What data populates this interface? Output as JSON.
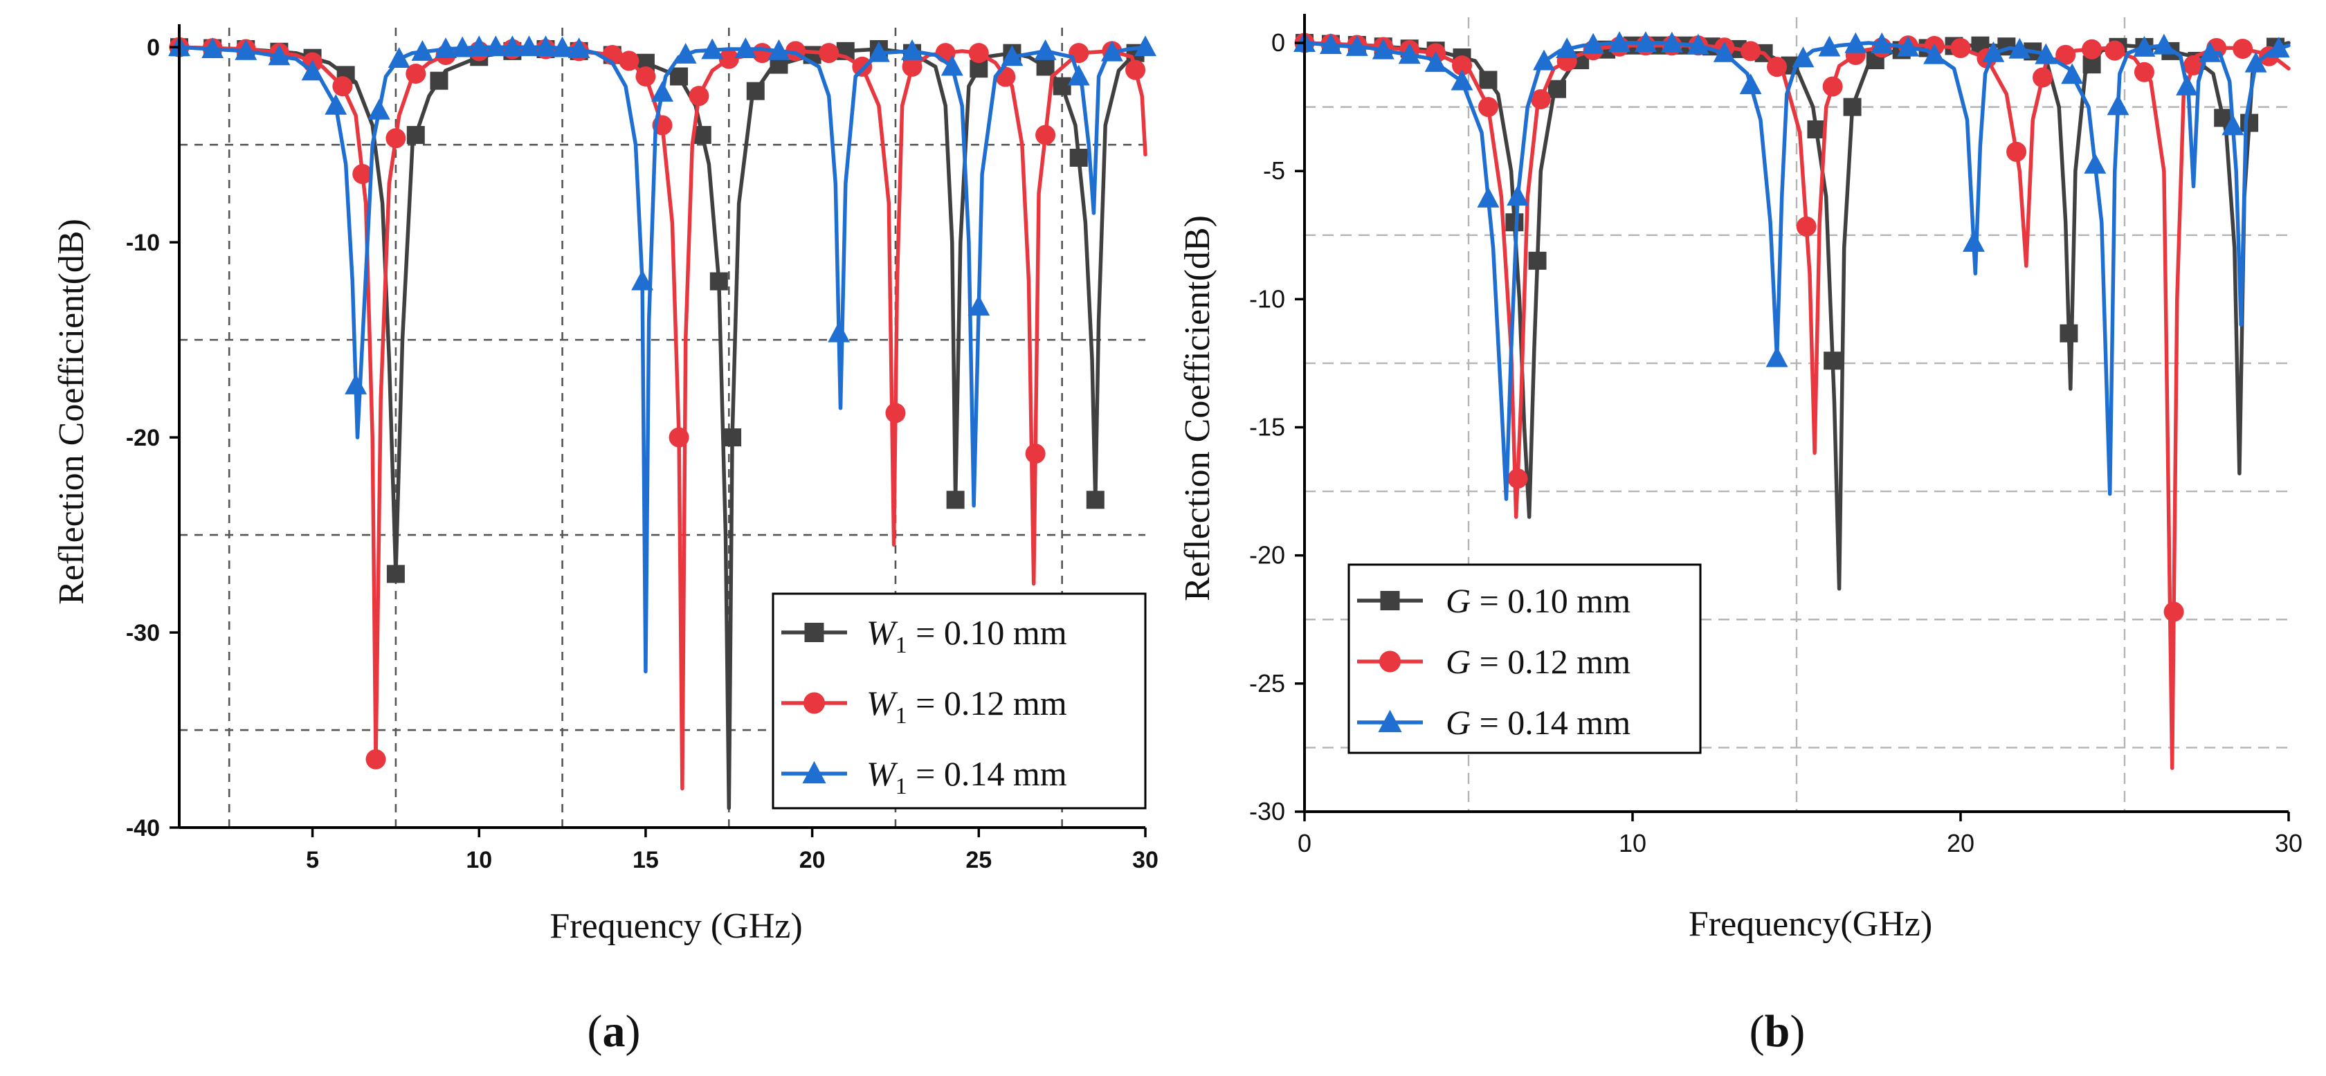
{
  "colors": {
    "black": "#404040",
    "red": "#e8373f",
    "blue": "#1e6fd1",
    "grid": "#555555",
    "grid_b": "#b4b4b4"
  },
  "panels": [
    {
      "id": "a",
      "label_prefix": "(",
      "label_letter": "a",
      "label_suffix": ")",
      "legend_text": [
        {
          "var": "W",
          "sub": "1",
          "rest": " = 0.10 mm"
        },
        {
          "var": "W",
          "sub": "1",
          "rest": " = 0.12 mm"
        },
        {
          "var": "W",
          "sub": "1",
          "rest": " = 0.14 mm"
        }
      ]
    },
    {
      "id": "b",
      "label_prefix": "(",
      "label_letter": "b",
      "label_suffix": ")",
      "legend_text": [
        {
          "var": "G",
          "sub": "",
          "rest": " = 0.10 mm"
        },
        {
          "var": "G",
          "sub": "",
          "rest": " = 0.12 mm"
        },
        {
          "var": "G",
          "sub": "",
          "rest": " = 0.14 mm"
        }
      ]
    }
  ],
  "chart_data": [
    {
      "type": "line",
      "title": "",
      "xlabel": "Frequency (GHz)",
      "ylabel": "Reflection Coefficient(dB)",
      "xlim": [
        1,
        30
      ],
      "ylim": [
        -40,
        1
      ],
      "xticks": [
        5,
        10,
        15,
        20,
        25,
        30
      ],
      "yticks": [
        -40,
        -30,
        -20,
        -10,
        0
      ],
      "xgrid": [
        2.5,
        7.5,
        12.5,
        17.5,
        22.5,
        27.5
      ],
      "ygrid": [
        -5,
        -15,
        -25,
        -35
      ],
      "legend_position": "bottom-right",
      "series": [
        {
          "name": "W1 = 0.10 mm",
          "color_key": "black",
          "marker": "square",
          "x": [
            1,
            3,
            4.5,
            5.5,
            6.3,
            6.8,
            7.1,
            7.3,
            7.5,
            7.7,
            8.0,
            8.5,
            9.0,
            10,
            11,
            12,
            13,
            14,
            15,
            16,
            16.5,
            16.9,
            17.2,
            17.4,
            17.5,
            17.6,
            17.8,
            18.2,
            18.8,
            20,
            21,
            22,
            23,
            23.7,
            24.0,
            24.2,
            24.3,
            24.45,
            24.7,
            25.2,
            26,
            26.5,
            27,
            27.5,
            27.9,
            28.2,
            28.4,
            28.5,
            28.6,
            28.8,
            29.2,
            29.7,
            30
          ],
          "y": [
            0,
            -0.1,
            -0.3,
            -0.8,
            -1.8,
            -4,
            -8,
            -16,
            -27,
            -15,
            -5,
            -2.5,
            -1.2,
            -0.5,
            -0.2,
            -0.1,
            -0.2,
            -0.4,
            -0.8,
            -1.5,
            -3,
            -6,
            -12,
            -25,
            -39,
            -20,
            -8,
            -2.5,
            -1.0,
            -0.4,
            -0.2,
            -0.1,
            -0.3,
            -1.0,
            -3,
            -10,
            -23.2,
            -10,
            -2,
            -0.5,
            -0.3,
            -0.5,
            -1.0,
            -2.0,
            -4,
            -9,
            -16,
            -23.2,
            -14,
            -4,
            -1.2,
            -0.3,
            -0.1
          ],
          "marker_x": [
            1,
            2,
            3,
            4,
            5,
            6,
            7.5,
            8.1,
            8.8,
            10.0,
            11,
            12,
            13,
            14,
            15,
            16,
            16.7,
            17.2,
            17.6,
            18.3,
            19,
            20,
            21,
            22,
            23,
            24.3,
            25,
            26,
            27,
            27.5,
            28.0,
            28.5,
            29.7
          ]
        },
        {
          "name": "W1 = 0.12 mm",
          "color_key": "red",
          "marker": "circle",
          "x": [
            1,
            3,
            4.5,
            5.3,
            5.9,
            6.3,
            6.6,
            6.8,
            6.9,
            7.05,
            7.3,
            7.6,
            8.0,
            8.5,
            9,
            10,
            11,
            12,
            13,
            14,
            14.5,
            15.0,
            15.5,
            15.8,
            16.0,
            16.1,
            16.2,
            16.4,
            16.6,
            17.0,
            17.5,
            18.5,
            19.5,
            20.5,
            21,
            21.5,
            22.0,
            22.3,
            22.45,
            22.55,
            22.7,
            23.0,
            23.5,
            24.5,
            25,
            25.5,
            26.0,
            26.3,
            26.5,
            26.65,
            26.8,
            27.2,
            28,
            29,
            29.6,
            29.9,
            30
          ],
          "y": [
            0,
            -0.1,
            -0.4,
            -1.0,
            -2.0,
            -3.5,
            -8,
            -20,
            -36.5,
            -18,
            -7,
            -3.5,
            -1.5,
            -0.8,
            -0.4,
            -0.2,
            -0.1,
            -0.1,
            -0.2,
            -0.4,
            -0.7,
            -1.5,
            -4,
            -9,
            -20,
            -38,
            -15,
            -5,
            -2.5,
            -1.2,
            -0.6,
            -0.3,
            -0.2,
            -0.3,
            -0.5,
            -1.0,
            -3,
            -8,
            -25.5,
            -12,
            -3,
            -1.0,
            -0.4,
            -0.2,
            -0.3,
            -0.8,
            -2,
            -5,
            -12,
            -27.5,
            -7.5,
            -1.5,
            -0.3,
            -0.2,
            -0.5,
            -2.5,
            -5.5
          ],
          "marker_x": [
            1,
            2,
            3,
            4,
            5,
            5.9,
            6.5,
            6.9,
            7.5,
            8.1,
            9,
            10,
            11,
            12,
            13,
            14,
            14.5,
            15.0,
            15.5,
            16.0,
            16.6,
            17.5,
            18.5,
            19.5,
            20.5,
            21.5,
            22.5,
            23,
            24,
            25,
            25.8,
            26.7,
            27,
            28,
            29,
            29.7
          ]
        },
        {
          "name": "W1 = 0.14 mm",
          "color_key": "blue",
          "marker": "triangle",
          "x": [
            1,
            3,
            4.5,
            5.2,
            5.7,
            6.0,
            6.2,
            6.35,
            6.5,
            6.8,
            7.2,
            7.6,
            8.0,
            9,
            10,
            11,
            12,
            13,
            13.5,
            14.0,
            14.4,
            14.7,
            14.9,
            15.0,
            15.1,
            15.3,
            15.6,
            16.0,
            16.5,
            17.5,
            18.5,
            19.5,
            20.2,
            20.5,
            20.7,
            20.85,
            21.0,
            21.3,
            22,
            23,
            23.7,
            24.2,
            24.5,
            24.7,
            24.85,
            25.1,
            25.5,
            26,
            27,
            27.8,
            28.1,
            28.3,
            28.45,
            28.6,
            28.9,
            29.5,
            30
          ],
          "y": [
            0,
            -0.2,
            -0.6,
            -1.5,
            -3,
            -6,
            -12,
            -20,
            -15,
            -5,
            -1.5,
            -0.6,
            -0.3,
            -0.1,
            0,
            0,
            0,
            -0.1,
            -0.3,
            -0.8,
            -2,
            -5,
            -12,
            -32,
            -14,
            -4,
            -1.5,
            -0.5,
            -0.2,
            -0.1,
            -0.1,
            -0.3,
            -1.0,
            -2.5,
            -7,
            -18.5,
            -7,
            -1.5,
            -0.3,
            -0.2,
            -0.4,
            -1.0,
            -3,
            -10,
            -23.5,
            -6.5,
            -1.5,
            -0.5,
            -0.2,
            -0.5,
            -2,
            -5,
            -8.5,
            -1.5,
            -0.3,
            -0.1,
            0
          ],
          "marker_x": [
            1,
            2,
            3,
            4,
            5,
            5.7,
            6.3,
            7.0,
            7.6,
            8.3,
            9,
            9.5,
            10,
            10.5,
            11,
            11.5,
            12,
            12.5,
            13,
            14.9,
            15.5,
            16.2,
            17,
            18,
            19,
            20.8,
            22,
            23,
            24.2,
            25,
            26,
            27,
            28,
            29,
            30
          ]
        }
      ]
    },
    {
      "type": "line",
      "title": "",
      "xlabel": "Frequency(GHz)",
      "ylabel": "Reflection Coefficient(dB)",
      "xlim": [
        0,
        30
      ],
      "ylim": [
        -30,
        1
      ],
      "xticks": [
        0,
        10,
        20,
        30
      ],
      "yticks": [
        -30,
        -25,
        -20,
        -15,
        -10,
        -5,
        0
      ],
      "xgrid": [
        5,
        15,
        25
      ],
      "ygrid": [
        -2.5,
        -7.5,
        -12.5,
        -17.5,
        -22.5,
        -27.5
      ],
      "legend_position": "middle-left",
      "series": [
        {
          "name": "G = 0.10 mm",
          "color_key": "black",
          "marker": "square",
          "x": [
            0,
            2,
            4,
            5.2,
            5.9,
            6.3,
            6.55,
            6.7,
            6.85,
            7.0,
            7.2,
            7.6,
            8.2,
            9,
            10,
            11,
            12,
            13,
            14,
            15,
            15.5,
            15.9,
            16.15,
            16.3,
            16.45,
            16.7,
            17.2,
            18,
            19,
            20,
            21,
            22,
            22.6,
            23.0,
            23.2,
            23.35,
            23.5,
            23.8,
            24.3,
            25,
            26,
            27,
            27.7,
            28.1,
            28.35,
            28.5,
            28.65,
            28.9,
            29.3,
            29.7,
            30
          ],
          "y": [
            0,
            -0.1,
            -0.3,
            -0.7,
            -2,
            -5,
            -10,
            -15,
            -18.5,
            -12,
            -5,
            -2,
            -0.8,
            -0.3,
            -0.1,
            -0.1,
            -0.1,
            -0.2,
            -0.4,
            -1.0,
            -2.5,
            -6,
            -14,
            -21.3,
            -8,
            -2.5,
            -0.8,
            -0.3,
            -0.2,
            -0.1,
            -0.1,
            -0.2,
            -0.6,
            -2.5,
            -7,
            -13.5,
            -5,
            -1.2,
            -0.3,
            -0.1,
            -0.2,
            -0.5,
            -1.2,
            -3.5,
            -8,
            -16.8,
            -6,
            -1.2,
            -0.3,
            -0.1,
            0
          ],
          "marker_x": [
            0,
            0.8,
            1.6,
            2.4,
            3.2,
            4.0,
            4.8,
            5.6,
            6.4,
            7.1,
            7.7,
            8.4,
            9.2,
            10.0,
            10.8,
            11.6,
            12.4,
            13.2,
            14.0,
            14.8,
            15.6,
            16.1,
            16.7,
            17.4,
            18.2,
            19.0,
            19.8,
            20.6,
            21.4,
            22.2,
            23.3,
            24.0,
            24.8,
            25.6,
            26.4,
            27.2,
            28.0,
            28.8,
            29.6
          ]
        },
        {
          "name": "G = 0.12 mm",
          "color_key": "red",
          "marker": "circle",
          "x": [
            0,
            2,
            4,
            5.0,
            5.6,
            6.0,
            6.3,
            6.45,
            6.6,
            6.8,
            7.1,
            7.6,
            8.3,
            9,
            10,
            11,
            12,
            13,
            14,
            14.6,
            15.1,
            15.4,
            15.55,
            15.7,
            15.9,
            16.3,
            17,
            18,
            19,
            20,
            20.8,
            21.4,
            21.8,
            22.0,
            22.2,
            22.6,
            23.5,
            24.5,
            25.3,
            25.8,
            26.2,
            26.45,
            26.6,
            26.8,
            27.2,
            27.8,
            28.5,
            29.2,
            29.7,
            30
          ],
          "y": [
            0,
            -0.1,
            -0.4,
            -1.0,
            -2.5,
            -6,
            -12,
            -18.5,
            -14,
            -6,
            -2.5,
            -1.0,
            -0.5,
            -0.2,
            -0.1,
            -0.1,
            -0.1,
            -0.2,
            -0.4,
            -1.2,
            -3.5,
            -9,
            -16,
            -7,
            -2.5,
            -0.9,
            -0.3,
            -0.1,
            -0.1,
            -0.2,
            -0.6,
            -2,
            -5,
            -8.7,
            -3,
            -0.8,
            -0.3,
            -0.2,
            -0.6,
            -1.5,
            -5,
            -28.3,
            -10,
            -2,
            -0.5,
            -0.2,
            -0.2,
            -0.4,
            -0.7,
            -1.0
          ],
          "marker_x": [
            0,
            0.8,
            1.6,
            2.4,
            3.2,
            4.0,
            4.8,
            5.6,
            6.5,
            7.2,
            8.0,
            8.8,
            9.6,
            10.4,
            11.2,
            12.0,
            12.8,
            13.6,
            14.4,
            15.3,
            16.1,
            16.8,
            17.6,
            18.4,
            19.2,
            20.0,
            20.8,
            21.7,
            22.5,
            23.2,
            24.0,
            24.7,
            25.6,
            26.5,
            27.1,
            27.8,
            28.6,
            29.4
          ]
        },
        {
          "name": "G = 0.14 mm",
          "color_key": "blue",
          "marker": "triangle",
          "x": [
            0,
            2,
            3.8,
            4.8,
            5.4,
            5.75,
            6.0,
            6.15,
            6.3,
            6.5,
            6.8,
            7.2,
            7.8,
            8.5,
            9.5,
            11,
            12,
            12.8,
            13.5,
            13.9,
            14.2,
            14.4,
            14.55,
            14.7,
            15.0,
            15.5,
            16.3,
            17.2,
            18,
            19,
            19.8,
            20.2,
            20.45,
            20.6,
            20.75,
            21,
            21.5,
            22.5,
            23.3,
            23.9,
            24.3,
            24.55,
            24.7,
            24.85,
            25.1,
            25.5,
            26.2,
            26.7,
            26.95,
            27.1,
            27.25,
            27.5,
            27.9,
            28.2,
            28.4,
            28.55,
            28.7,
            29,
            29.5,
            30
          ],
          "y": [
            0,
            -0.2,
            -0.6,
            -1.5,
            -3.5,
            -8,
            -14,
            -17.8,
            -12,
            -6,
            -2.5,
            -0.8,
            -0.3,
            -0.1,
            0,
            0,
            -0.1,
            -0.4,
            -1.2,
            -3,
            -7,
            -12.3,
            -6,
            -2,
            -0.8,
            -0.3,
            -0.1,
            0,
            -0.1,
            -0.3,
            -1.0,
            -3,
            -9,
            -4,
            -1.2,
            -0.4,
            -0.2,
            -0.4,
            -1.0,
            -2.5,
            -7,
            -17.6,
            -5,
            -1.2,
            -0.4,
            -0.2,
            -0.1,
            -0.5,
            -2,
            -5.6,
            -1.5,
            -0.4,
            -0.4,
            -1.5,
            -5,
            -11,
            -3,
            -0.8,
            -0.3,
            -0.1
          ],
          "marker_x": [
            0,
            0.8,
            1.6,
            2.4,
            3.2,
            4.0,
            4.8,
            5.6,
            6.5,
            7.3,
            8.0,
            8.8,
            9.6,
            10.4,
            11.2,
            12.0,
            12.8,
            13.6,
            14.4,
            15.2,
            16.0,
            16.8,
            17.6,
            18.4,
            19.2,
            20.4,
            21.0,
            21.8,
            22.6,
            23.4,
            24.1,
            24.8,
            25.6,
            26.2,
            26.9,
            27.6,
            28.3,
            29.0,
            29.7
          ]
        }
      ]
    }
  ]
}
